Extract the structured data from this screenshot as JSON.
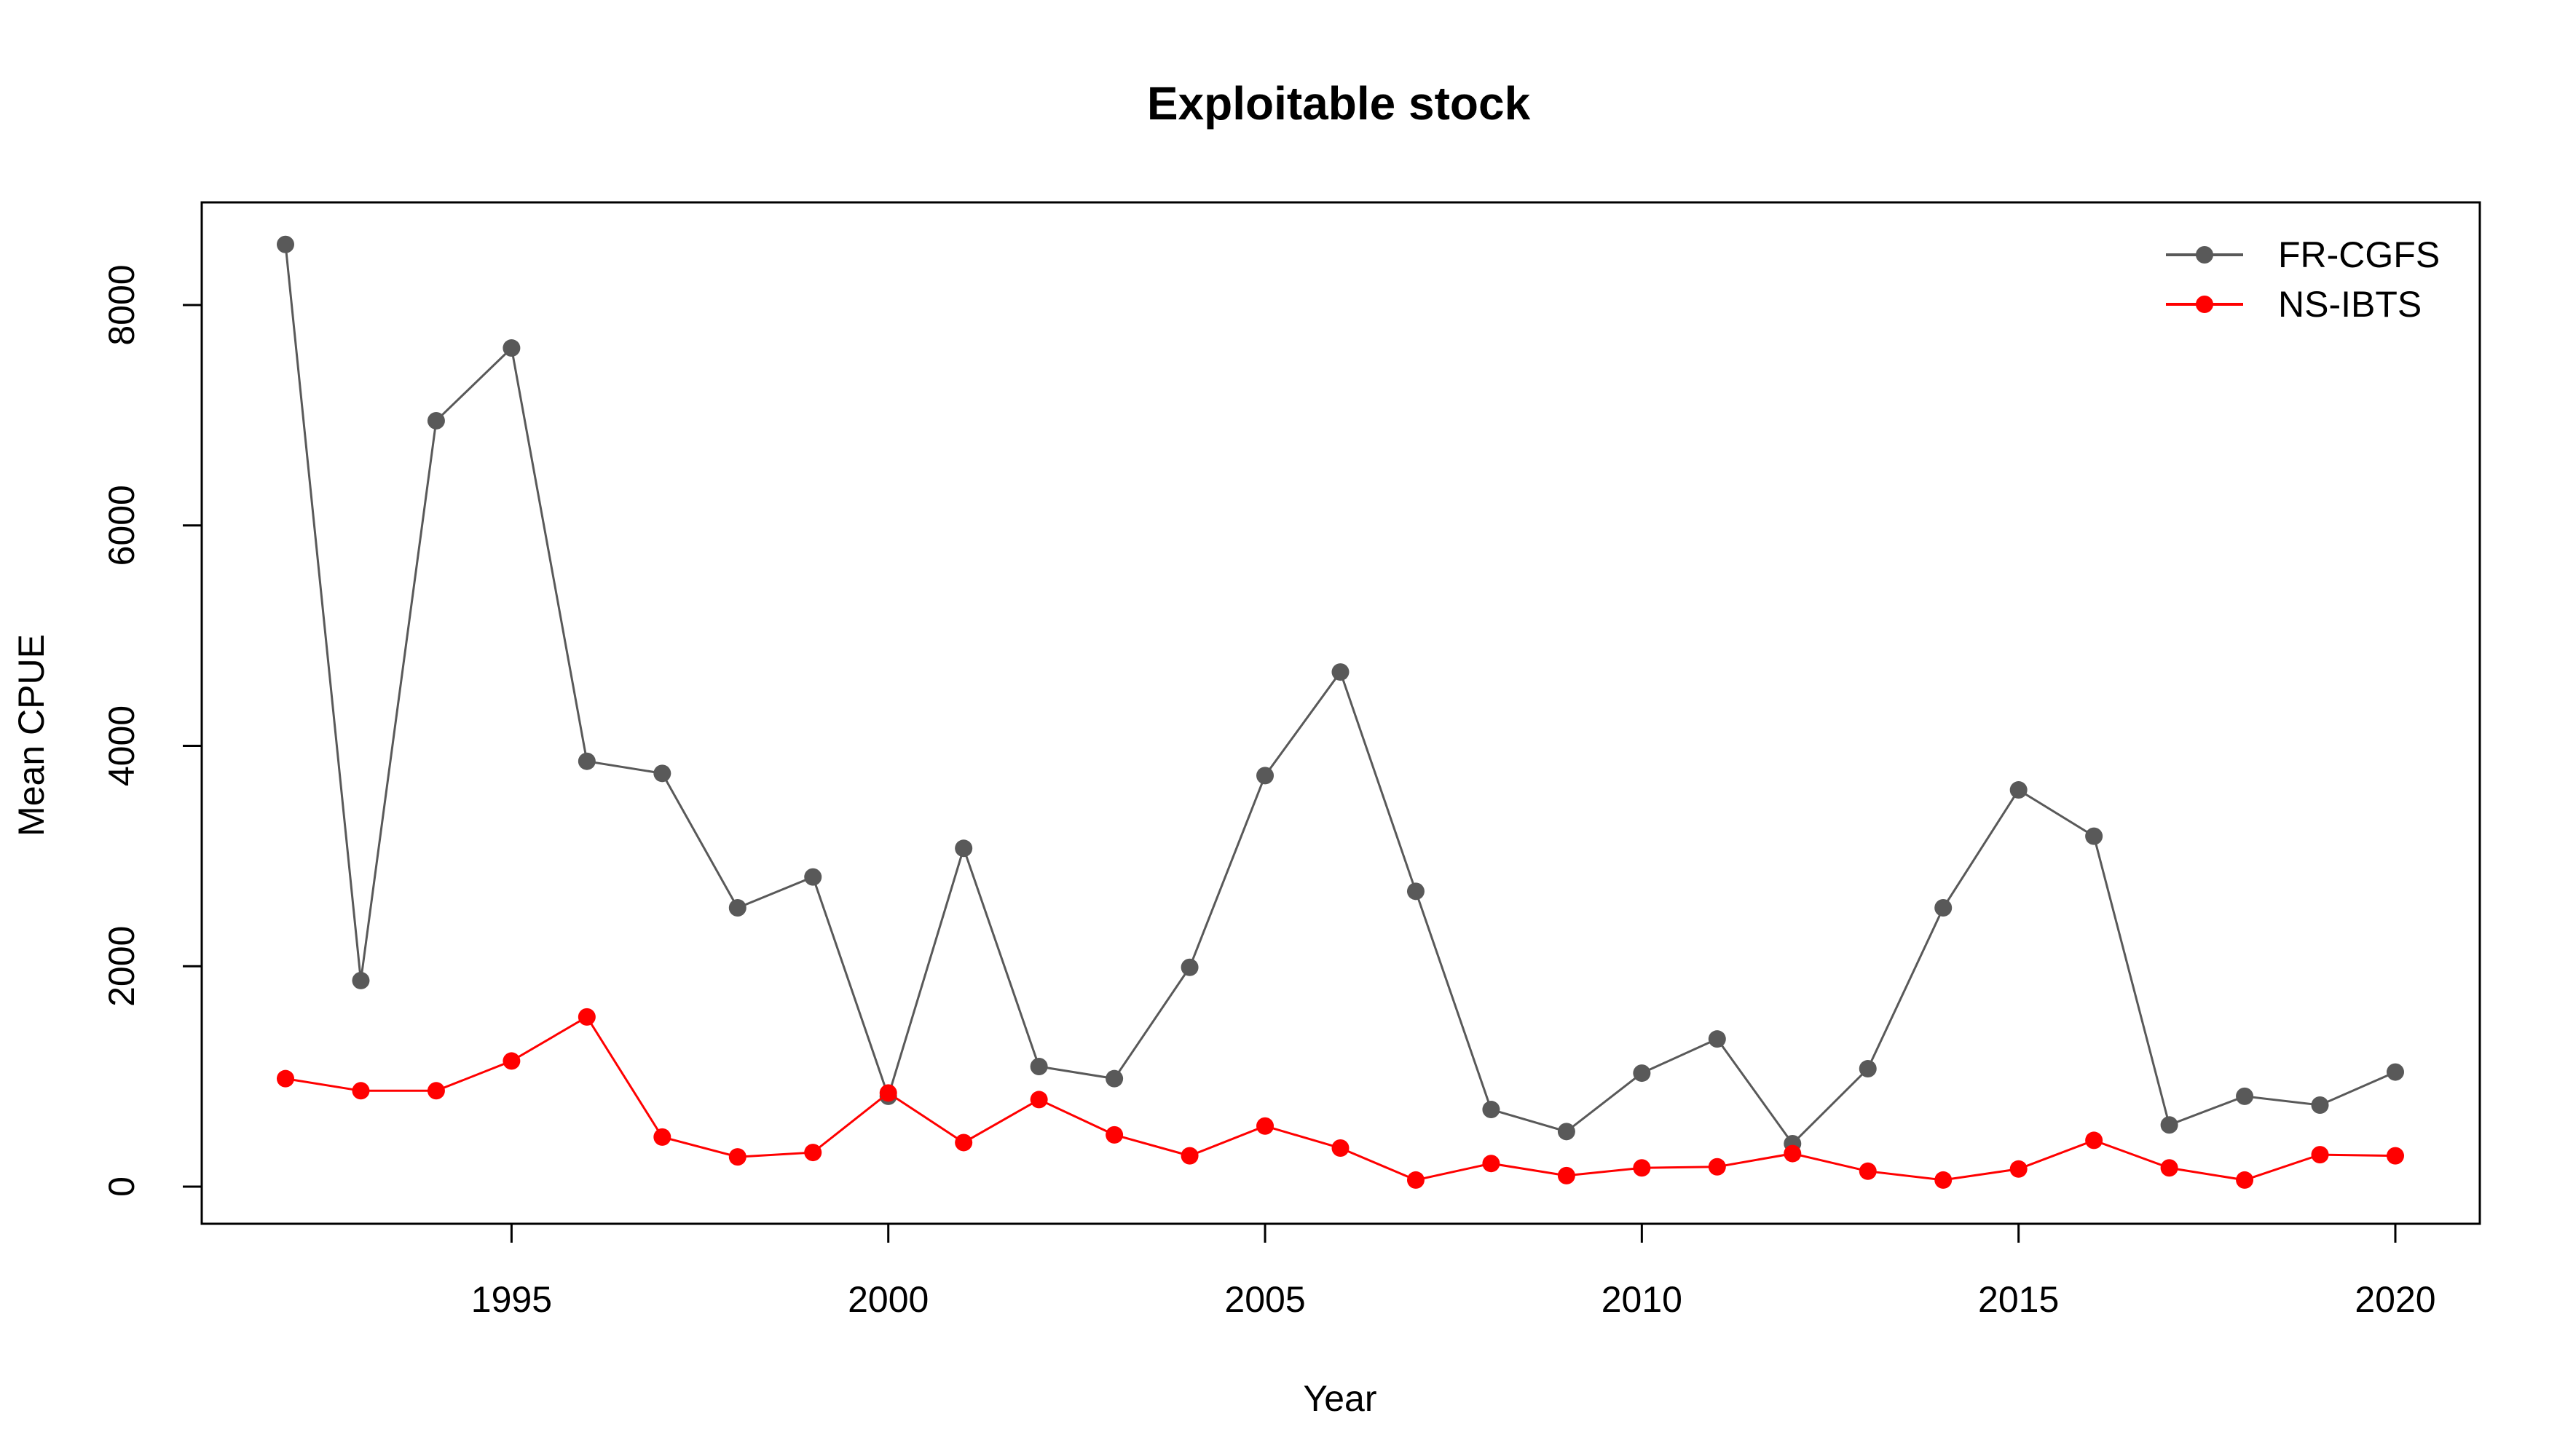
{
  "chart_data": {
    "type": "line",
    "title": "Exploitable stock",
    "xlabel": "Year",
    "ylabel": "Mean CPUE",
    "xlim": [
      1992,
      2020
    ],
    "ylim": [
      0,
      8000
    ],
    "x_ticks": [
      1995,
      2000,
      2005,
      2010,
      2015,
      2020
    ],
    "y_ticks": [
      0,
      2000,
      4000,
      6000,
      8000
    ],
    "legend_position": "top-right",
    "x": [
      1992,
      1993,
      1994,
      1995,
      1996,
      1997,
      1998,
      1999,
      2000,
      2001,
      2002,
      2003,
      2004,
      2005,
      2006,
      2007,
      2008,
      2009,
      2010,
      2011,
      2012,
      2013,
      2014,
      2015,
      2016,
      2017,
      2018,
      2019,
      2020
    ],
    "series": [
      {
        "name": "FR-CGFS",
        "color": "#595959",
        "values": [
          8550,
          1870,
          6950,
          7610,
          3860,
          3750,
          2530,
          2810,
          820,
          3070,
          1090,
          980,
          1990,
          3730,
          4670,
          2680,
          700,
          500,
          1030,
          1340,
          390,
          1070,
          2530,
          3600,
          3180,
          560,
          820,
          740,
          1040
        ]
      },
      {
        "name": "NS-IBTS",
        "color": "#ff0000",
        "values": [
          980,
          870,
          870,
          1140,
          1540,
          450,
          270,
          310,
          850,
          400,
          790,
          470,
          280,
          550,
          350,
          60,
          210,
          100,
          170,
          180,
          300,
          140,
          60,
          160,
          420,
          170,
          60,
          290,
          280
        ]
      }
    ]
  }
}
